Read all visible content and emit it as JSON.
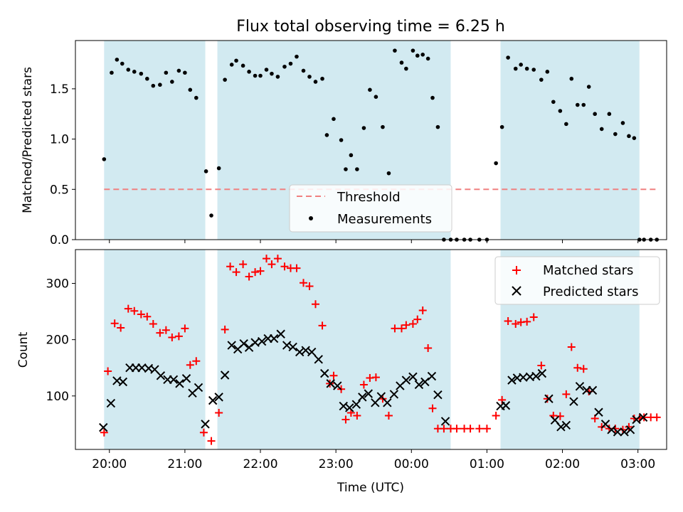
{
  "chart_data": {
    "title": "Flux total observing time = 6.25 h",
    "xlabel": "Time (UTC)",
    "x_ticks": [
      "20:00",
      "21:00",
      "22:00",
      "23:00",
      "00:00",
      "01:00",
      "02:00",
      "03:00"
    ],
    "x_range_hours": [
      19.55,
      27.38
    ],
    "colors": {
      "observing_band": "#add8e6",
      "threshold": "#f08080",
      "measurements": "#000000",
      "matched": "#ff0000",
      "predicted": "#000000"
    },
    "observing_windows": [
      [
        19.93,
        21.27
      ],
      [
        21.43,
        24.52
      ],
      [
        25.18,
        27.02
      ]
    ],
    "panels": [
      {
        "type": "scatter",
        "ylabel": "Matched/Predicted stars",
        "ylim": [
          0,
          1.98
        ],
        "y_ticks": [
          "0.0",
          "0.5",
          "1.0",
          "1.5"
        ],
        "y_tick_values": [
          0,
          0.5,
          1.0,
          1.5
        ],
        "threshold": {
          "name": "Threshold",
          "value": 0.5,
          "x_range": [
            19.93,
            27.28
          ]
        },
        "legend": {
          "position": "lower-center",
          "entries": [
            "Threshold",
            "Measurements"
          ]
        },
        "series": [
          {
            "name": "Measurements",
            "marker": "dot",
            "x": [
              19.93,
              20.03,
              20.1,
              20.17,
              20.25,
              20.33,
              20.42,
              20.5,
              20.58,
              20.67,
              20.75,
              20.83,
              20.92,
              21.0,
              21.07,
              21.15,
              21.28,
              21.35,
              21.45,
              21.53,
              21.62,
              21.68,
              21.77,
              21.85,
              21.93,
              22.0,
              22.08,
              22.15,
              22.23,
              22.32,
              22.4,
              22.48,
              22.57,
              22.65,
              22.73,
              22.82,
              22.88,
              22.97,
              23.07,
              23.13,
              23.2,
              23.28,
              23.37,
              23.45,
              23.53,
              23.62,
              23.7,
              23.78,
              23.87,
              23.93,
              24.02,
              24.08,
              24.15,
              24.22,
              24.28,
              24.35,
              24.43,
              24.52,
              24.6,
              24.7,
              24.78,
              24.9,
              25.0,
              25.12,
              25.2,
              25.28,
              25.38,
              25.45,
              25.53,
              25.62,
              25.72,
              25.8,
              25.88,
              25.97,
              26.05,
              26.12,
              26.2,
              26.28,
              26.35,
              26.43,
              26.52,
              26.62,
              26.7,
              26.8,
              26.88,
              26.95,
              27.02,
              27.08,
              27.17,
              27.25
            ],
            "y": [
              0.8,
              1.66,
              1.79,
              1.75,
              1.69,
              1.67,
              1.65,
              1.6,
              1.53,
              1.54,
              1.66,
              1.57,
              1.68,
              1.66,
              1.49,
              1.41,
              0.68,
              0.24,
              0.71,
              1.59,
              1.74,
              1.78,
              1.73,
              1.67,
              1.63,
              1.63,
              1.69,
              1.65,
              1.62,
              1.72,
              1.75,
              1.82,
              1.68,
              1.62,
              1.57,
              1.6,
              1.04,
              1.2,
              0.99,
              0.7,
              0.84,
              0.7,
              1.11,
              1.49,
              1.42,
              1.12,
              0.66,
              1.88,
              1.76,
              1.7,
              1.88,
              1.83,
              1.84,
              1.8,
              1.41,
              1.12,
              0.0,
              0.0,
              0.0,
              0.0,
              0.0,
              0.0,
              0.0,
              0.76,
              1.12,
              1.81,
              1.7,
              1.74,
              1.7,
              1.69,
              1.59,
              1.67,
              1.37,
              1.28,
              1.15,
              1.6,
              1.34,
              1.34,
              1.52,
              1.25,
              1.1,
              1.25,
              1.05,
              1.16,
              1.03,
              1.01,
              0.0,
              0.0,
              0.0,
              0.0
            ]
          }
        ]
      },
      {
        "type": "scatter",
        "ylabel": "Count",
        "ylim": [
          5,
          360
        ],
        "y_ticks": [
          "100",
          "200",
          "300"
        ],
        "y_tick_values": [
          100,
          200,
          300
        ],
        "legend": {
          "position": "top-right",
          "entries": [
            "Matched stars",
            "Predicted stars"
          ]
        },
        "series": [
          {
            "name": "Matched stars",
            "marker": "plus",
            "x": [
              19.93,
              19.98,
              20.07,
              20.15,
              20.25,
              20.33,
              20.42,
              20.5,
              20.58,
              20.67,
              20.75,
              20.83,
              20.92,
              21.0,
              21.07,
              21.15,
              21.25,
              21.35,
              21.45,
              21.53,
              21.6,
              21.68,
              21.77,
              21.85,
              21.93,
              22.0,
              22.08,
              22.15,
              22.23,
              22.32,
              22.4,
              22.48,
              22.57,
              22.65,
              22.73,
              22.82,
              22.92,
              22.97,
              23.07,
              23.13,
              23.2,
              23.28,
              23.37,
              23.45,
              23.53,
              23.62,
              23.7,
              23.78,
              23.87,
              23.93,
              24.02,
              24.08,
              24.15,
              24.22,
              24.28,
              24.35,
              24.43,
              24.52,
              24.6,
              24.7,
              24.78,
              24.9,
              25.0,
              25.12,
              25.2,
              25.28,
              25.38,
              25.45,
              25.53,
              25.62,
              25.72,
              25.8,
              25.88,
              25.97,
              26.05,
              26.12,
              26.2,
              26.28,
              26.35,
              26.43,
              26.52,
              26.62,
              26.7,
              26.8,
              26.88,
              26.95,
              27.02,
              27.08,
              27.17,
              27.25
            ],
            "y": [
              35,
              144,
              229,
              221,
              255,
              251,
              245,
              241,
              228,
              212,
              217,
              204,
              206,
              220,
              155,
              162,
              35,
              20,
              70,
              218,
              330,
              320,
              334,
              312,
              320,
              322,
              344,
              334,
              344,
              330,
              327,
              327,
              301,
              295,
              263,
              225,
              122,
              136,
              112,
              58,
              70,
              65,
              120,
              132,
              133,
              95,
              65,
              220,
              220,
              226,
              228,
              236,
              252,
              185,
              78,
              42,
              42,
              42,
              42,
              42,
              42,
              42,
              42,
              65,
              93,
              233,
              228,
              231,
              232,
              240,
              154,
              95,
              65,
              64,
              103,
              187,
              150,
              148,
              108,
              60,
              45,
              42,
              42,
              40,
              45,
              60,
              60,
              62,
              62,
              62
            ]
          },
          {
            "name": "Predicted stars",
            "marker": "x",
            "x": [
              19.92,
              20.02,
              20.1,
              20.18,
              20.27,
              20.35,
              20.43,
              20.52,
              20.6,
              20.68,
              20.77,
              20.85,
              20.93,
              21.02,
              21.1,
              21.18,
              21.27,
              21.37,
              21.45,
              21.53,
              21.62,
              21.7,
              21.78,
              21.85,
              21.93,
              22.02,
              22.1,
              22.18,
              22.27,
              22.35,
              22.43,
              22.52,
              22.6,
              22.68,
              22.77,
              22.85,
              22.93,
              23.02,
              23.1,
              23.18,
              23.27,
              23.35,
              23.43,
              23.52,
              23.6,
              23.68,
              23.77,
              23.85,
              23.93,
              24.02,
              24.1,
              24.18,
              24.27,
              24.35,
              24.45,
              25.18,
              25.25,
              25.33,
              25.4,
              25.48,
              25.57,
              25.65,
              25.73,
              25.82,
              25.9,
              25.98,
              26.05,
              26.15,
              26.23,
              26.32,
              26.4,
              26.48,
              26.57,
              26.65,
              26.73,
              26.82,
              26.9,
              26.98,
              27.07
            ],
            "y": [
              44,
              87,
              127,
              125,
              150,
              150,
              150,
              149,
              147,
              136,
              129,
              129,
              122,
              131,
              105,
              115,
              50,
              92,
              98,
              137,
              190,
              183,
              193,
              186,
              195,
              197,
              202,
              202,
              210,
              190,
              187,
              178,
              181,
              178,
              165,
              140,
              122,
              118,
              82,
              79,
              85,
              98,
              104,
              88,
              99,
              88,
              103,
              118,
              128,
              134,
              120,
              125,
              135,
              102,
              55,
              82,
              83,
              128,
              132,
              133,
              134,
              135,
              140,
              95,
              57,
              45,
              48,
              90,
              117,
              110,
              110,
              71,
              50,
              40,
              36,
              36,
              40,
              58,
              62
            ]
          }
        ]
      }
    ]
  }
}
